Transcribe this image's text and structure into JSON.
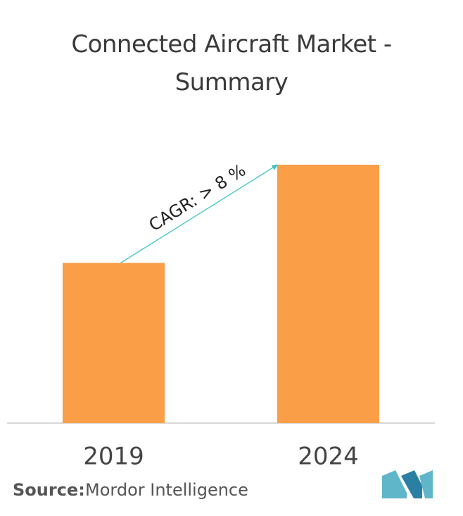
{
  "chart_data": {
    "type": "bar",
    "title": "Connected Aircraft Market - Summary",
    "categories": [
      "2019",
      "2024"
    ],
    "values": [
      62,
      100
    ],
    "color": "#fa9e47",
    "annotation": "CAGR: > 8 %",
    "source_label": "Source:",
    "source": "Mordor Intelligence"
  }
}
